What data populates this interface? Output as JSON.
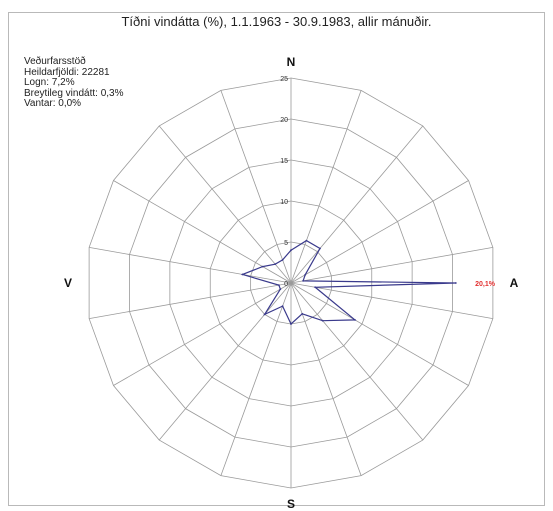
{
  "chart_data": {
    "type": "radar",
    "title": "Tíðni vindátta (%), 1.1.1963 - 30.9.1983, allir mánuðir.",
    "info_lines": [
      "Veðurfarsstöð",
      "Heildarfjöldi: 22281",
      "Logn: 7,2%",
      "Breytileg vindátt: 0,3%",
      "Vantar: 0,0%"
    ],
    "directions": [
      {
        "label": "N",
        "angle_deg": 0
      },
      {
        "label": "A",
        "angle_deg": 90
      },
      {
        "label": "S",
        "angle_deg": 180
      },
      {
        "label": "V",
        "angle_deg": 270
      }
    ],
    "r_ticks": [
      "0",
      "5",
      "10",
      "15",
      "20",
      "25"
    ],
    "rlim": [
      0,
      25
    ],
    "spokes": 18,
    "series": [
      {
        "color": "#3a3a8c",
        "angles_deg": [
          0,
          20,
          40,
          60,
          80,
          90,
          100,
          120,
          140,
          160,
          180,
          200,
          220,
          240,
          260,
          280,
          300,
          320,
          340
        ],
        "values": [
          4,
          5.5,
          5.5,
          2,
          1.5,
          20.1,
          3,
          9,
          6,
          4,
          5,
          3,
          5,
          1.5,
          1.5,
          6,
          4,
          3,
          3
        ]
      }
    ],
    "peak_label": "20,1%"
  }
}
